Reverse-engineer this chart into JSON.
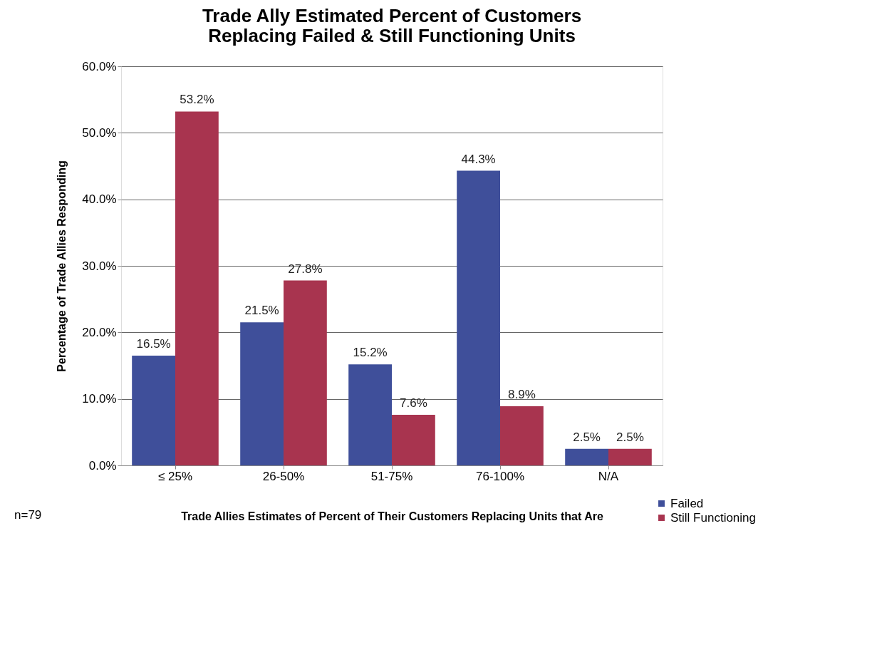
{
  "chart_data": {
    "type": "bar",
    "title": "Trade Ally Estimated Percent of Customers\nReplacing Failed & Still Functioning Units",
    "xlabel": "Trade Allies Estimates of Percent of Their Customers Replacing Units that Are",
    "ylabel": "Percentage of Trade Allies Responding",
    "categories": [
      "≤ 25%",
      "26-50%",
      "51-75%",
      "76-100%",
      "N/A"
    ],
    "series": [
      {
        "name": "Failed",
        "color": "#3f4f9a",
        "values": [
          16.5,
          21.5,
          15.2,
          44.3,
          2.5
        ],
        "value_labels": [
          "16.5%",
          "21.5%",
          "15.2%",
          "44.3%",
          "2.5%"
        ]
      },
      {
        "name": "Still Functioning",
        "color": "#a8344f",
        "values": [
          53.2,
          27.8,
          7.6,
          8.9,
          2.5
        ],
        "value_labels": [
          "53.2%",
          "27.8%",
          "7.6%",
          "8.9%",
          "2.5%"
        ]
      }
    ],
    "ylim": [
      0,
      60
    ],
    "yticks": [
      {
        "value": 0,
        "label": "0.0%"
      },
      {
        "value": 10,
        "label": "10.0%"
      },
      {
        "value": 20,
        "label": "20.0%"
      },
      {
        "value": 30,
        "label": "30.0%"
      },
      {
        "value": 40,
        "label": "40.0%"
      },
      {
        "value": 50,
        "label": "50.0%"
      },
      {
        "value": 60,
        "label": "60.0%"
      }
    ],
    "grid": "y",
    "legend": "bottom right",
    "annotations": [
      "n=79"
    ]
  }
}
